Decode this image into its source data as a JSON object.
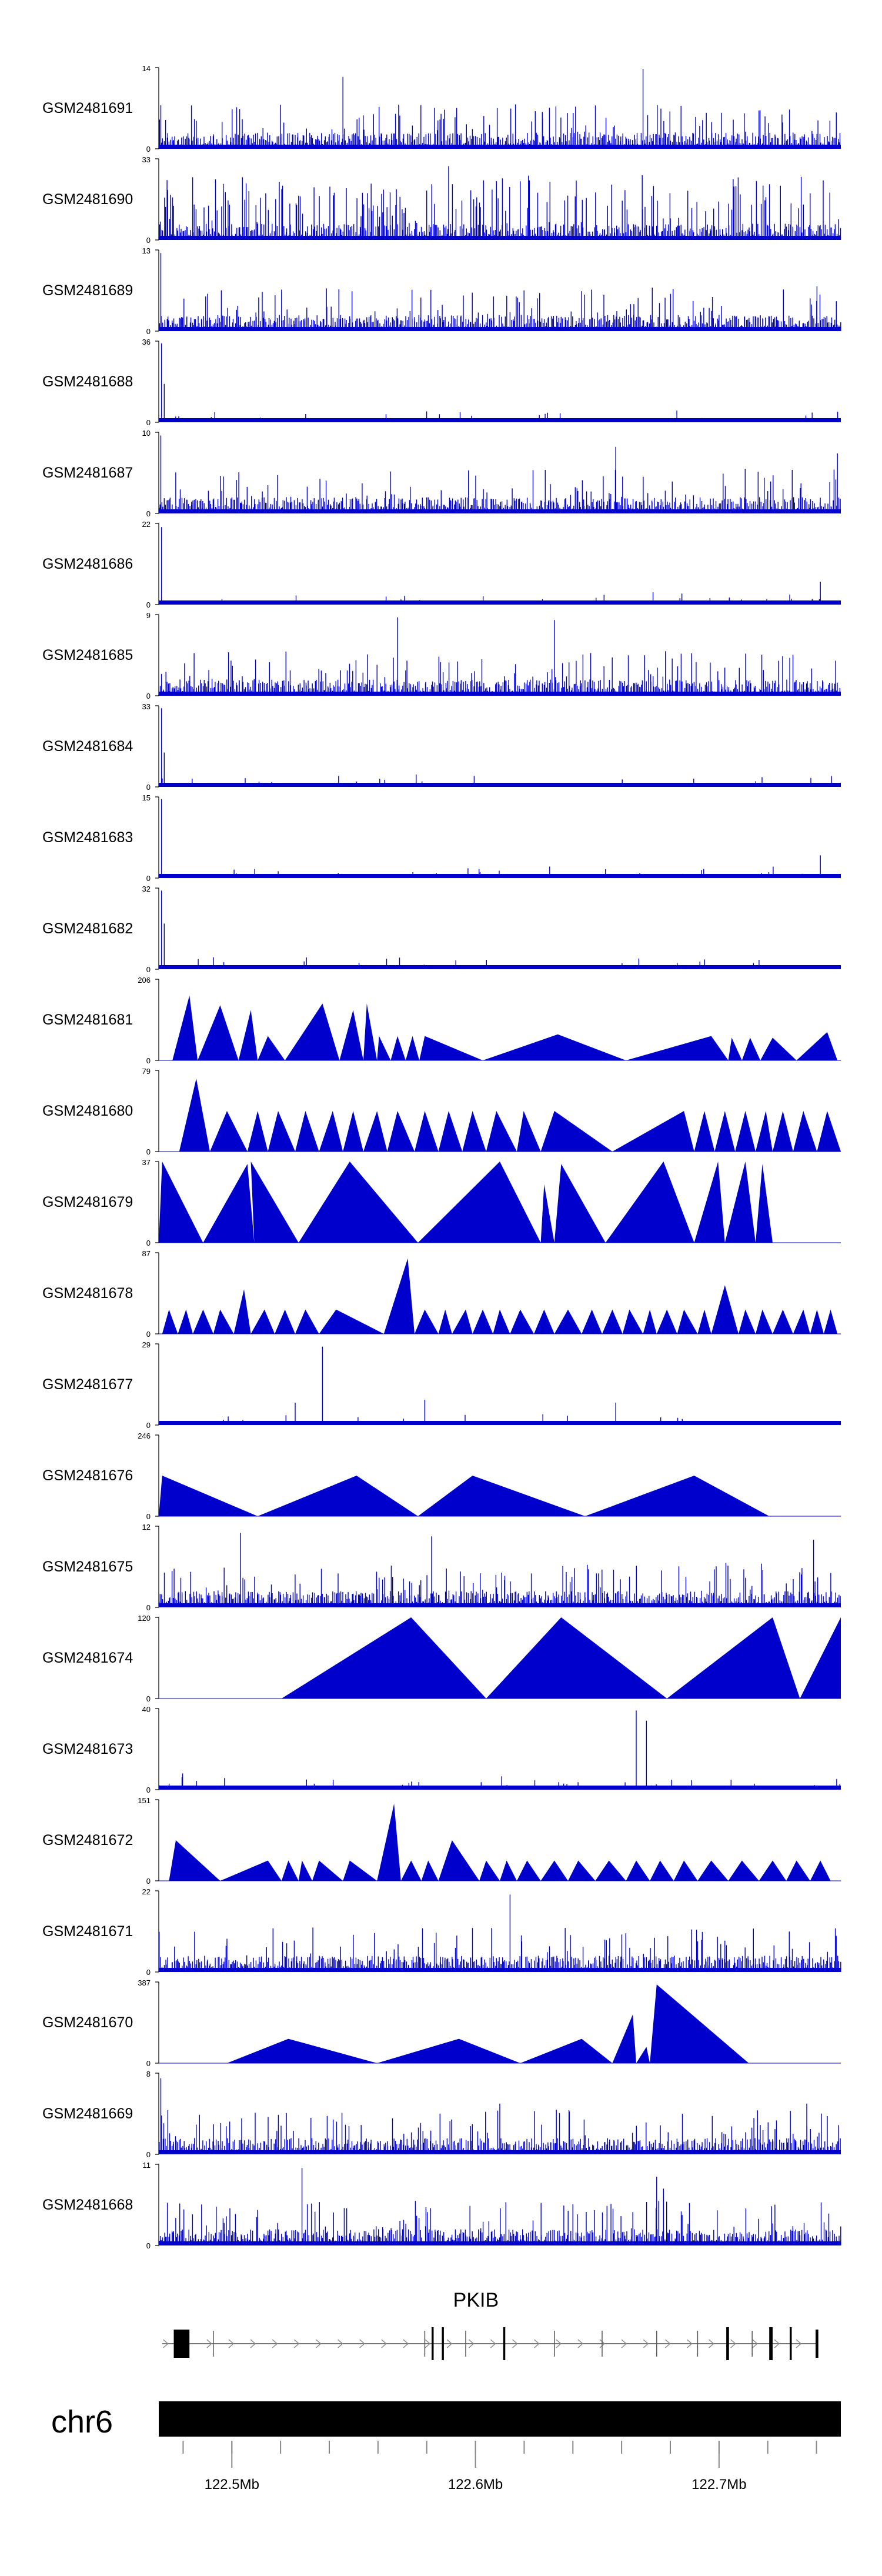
{
  "chart_data": {
    "type": "area",
    "title": "",
    "colors": {
      "signal": "#0000cc",
      "axis": "#000000",
      "gene": "#000000",
      "chromosome_bar": "#000000"
    },
    "tracks": [
      {
        "name": "GSM2481691",
        "ymax": "14",
        "ymin": "0",
        "style": "dense",
        "peaks": [
          [
            0.003,
            7.5
          ],
          [
            0.27,
            12.4
          ],
          [
            0.71,
            13.8
          ],
          [
            0.88,
            6.6
          ]
        ]
      },
      {
        "name": "GSM2481690",
        "ymax": "33",
        "ymin": "0",
        "style": "dense-spiky",
        "peaks": [
          [
            0.205,
            18
          ],
          [
            0.425,
            30
          ],
          [
            0.955,
            19
          ]
        ]
      },
      {
        "name": "GSM2481689",
        "ymax": "13",
        "ymin": "0",
        "style": "dense",
        "peaks": [
          [
            0.003,
            12.5
          ],
          [
            0.62,
            6.4
          ],
          [
            0.965,
            7.2
          ]
        ]
      },
      {
        "name": "GSM2481688",
        "ymax": "36",
        "ymin": "0",
        "style": "sparse",
        "peaks": [
          [
            0.004,
            35
          ],
          [
            0.008,
            17
          ]
        ]
      },
      {
        "name": "GSM2481687",
        "ymax": "10",
        "ymin": "0",
        "style": "dense",
        "peaks": [
          [
            0.003,
            9.6
          ],
          [
            0.67,
            8.2
          ],
          [
            0.995,
            7.4
          ]
        ]
      },
      {
        "name": "GSM2481686",
        "ymax": "22",
        "ymin": "0",
        "style": "sparse",
        "peaks": [
          [
            0.004,
            21
          ],
          [
            0.97,
            6.2
          ]
        ]
      },
      {
        "name": "GSM2481685",
        "ymax": "9",
        "ymin": "0",
        "style": "dense",
        "peaks": [
          [
            0.35,
            8.7
          ],
          [
            0.58,
            8.4
          ]
        ]
      },
      {
        "name": "GSM2481684",
        "ymax": "33",
        "ymin": "0",
        "style": "sparse",
        "peaks": [
          [
            0.004,
            32
          ],
          [
            0.008,
            14
          ]
        ]
      },
      {
        "name": "GSM2481683",
        "ymax": "15",
        "ymin": "0",
        "style": "sparse",
        "peaks": [
          [
            0.004,
            14.6
          ],
          [
            0.97,
            4.2
          ]
        ]
      },
      {
        "name": "GSM2481682",
        "ymax": "32",
        "ymin": "0",
        "style": "sparse",
        "peaks": [
          [
            0.004,
            31
          ],
          [
            0.008,
            18
          ]
        ]
      },
      {
        "name": "GSM2481681",
        "ymax": "206",
        "ymin": "0",
        "style": "triangles",
        "tri": [
          [
            0.02,
            0.045,
            0.057,
            0.8
          ],
          [
            0.057,
            0.09,
            0.117,
            0.68
          ],
          [
            0.117,
            0.135,
            0.145,
            0.62
          ],
          [
            0.145,
            0.16,
            0.185,
            0.3
          ],
          [
            0.185,
            0.24,
            0.265,
            0.7
          ],
          [
            0.265,
            0.285,
            0.3,
            0.62
          ],
          [
            0.3,
            0.305,
            0.32,
            0.7
          ],
          [
            0.32,
            0.323,
            0.34,
            0.3
          ],
          [
            0.34,
            0.35,
            0.362,
            0.3
          ],
          [
            0.362,
            0.372,
            0.382,
            0.3
          ],
          [
            0.382,
            0.39,
            0.475,
            0.3
          ],
          [
            0.475,
            0.585,
            0.685,
            0.32
          ],
          [
            0.685,
            0.81,
            0.835,
            0.3
          ],
          [
            0.835,
            0.84,
            0.855,
            0.28
          ],
          [
            0.855,
            0.867,
            0.882,
            0.28
          ],
          [
            0.882,
            0.9,
            0.935,
            0.28
          ],
          [
            0.935,
            0.98,
            0.995,
            0.35
          ]
        ]
      },
      {
        "name": "GSM2481680",
        "ymax": "79",
        "ymin": "0",
        "style": "triangles",
        "tri": [
          [
            0.03,
            0.055,
            0.075,
            0.9
          ],
          [
            0.075,
            0.1,
            0.13,
            0.5
          ],
          [
            0.13,
            0.145,
            0.16,
            0.5
          ],
          [
            0.16,
            0.175,
            0.2,
            0.5
          ],
          [
            0.2,
            0.215,
            0.235,
            0.5
          ],
          [
            0.235,
            0.255,
            0.27,
            0.5
          ],
          [
            0.27,
            0.285,
            0.3,
            0.5
          ],
          [
            0.3,
            0.32,
            0.335,
            0.5
          ],
          [
            0.335,
            0.35,
            0.375,
            0.5
          ],
          [
            0.375,
            0.39,
            0.41,
            0.5
          ],
          [
            0.41,
            0.425,
            0.445,
            0.5
          ],
          [
            0.445,
            0.46,
            0.48,
            0.5
          ],
          [
            0.48,
            0.495,
            0.525,
            0.5
          ],
          [
            0.525,
            0.535,
            0.56,
            0.5
          ],
          [
            0.56,
            0.58,
            0.665,
            0.5
          ],
          [
            0.665,
            0.77,
            0.785,
            0.5
          ],
          [
            0.785,
            0.8,
            0.815,
            0.5
          ],
          [
            0.815,
            0.83,
            0.845,
            0.5
          ],
          [
            0.845,
            0.86,
            0.875,
            0.5
          ],
          [
            0.875,
            0.89,
            0.9,
            0.5
          ],
          [
            0.9,
            0.915,
            0.93,
            0.5
          ],
          [
            0.93,
            0.945,
            0.965,
            0.5
          ],
          [
            0.965,
            0.98,
            1.0,
            0.5
          ]
        ]
      },
      {
        "name": "GSM2481679",
        "ymax": "37",
        "ymin": "0",
        "style": "triangles",
        "tri": [
          [
            0.0,
            0.005,
            0.065,
            1.0
          ],
          [
            0.065,
            0.13,
            0.14,
            0.97
          ],
          [
            0.14,
            0.135,
            0.205,
            1.0
          ],
          [
            0.205,
            0.28,
            0.38,
            1.0
          ],
          [
            0.38,
            0.5,
            0.56,
            1.0
          ],
          [
            0.56,
            0.565,
            0.58,
            0.72
          ],
          [
            0.58,
            0.59,
            0.655,
            0.97
          ],
          [
            0.655,
            0.74,
            0.785,
            1.0
          ],
          [
            0.785,
            0.82,
            0.83,
            1.0
          ],
          [
            0.83,
            0.86,
            0.875,
            1.0
          ],
          [
            0.875,
            0.885,
            0.9,
            0.97
          ]
        ]
      },
      {
        "name": "GSM2481678",
        "ymax": "87",
        "ymin": "0",
        "style": "triangles",
        "tri": [
          [
            0.005,
            0.015,
            0.028,
            0.3
          ],
          [
            0.028,
            0.04,
            0.05,
            0.3
          ],
          [
            0.05,
            0.065,
            0.08,
            0.3
          ],
          [
            0.08,
            0.09,
            0.11,
            0.3
          ],
          [
            0.11,
            0.125,
            0.135,
            0.55
          ],
          [
            0.135,
            0.155,
            0.17,
            0.3
          ],
          [
            0.17,
            0.185,
            0.2,
            0.3
          ],
          [
            0.2,
            0.215,
            0.235,
            0.3
          ],
          [
            0.235,
            0.26,
            0.33,
            0.3
          ],
          [
            0.33,
            0.365,
            0.375,
            0.93
          ],
          [
            0.375,
            0.39,
            0.41,
            0.3
          ],
          [
            0.41,
            0.42,
            0.43,
            0.3
          ],
          [
            0.43,
            0.45,
            0.46,
            0.3
          ],
          [
            0.46,
            0.475,
            0.49,
            0.3
          ],
          [
            0.49,
            0.5,
            0.515,
            0.3
          ],
          [
            0.515,
            0.53,
            0.55,
            0.3
          ],
          [
            0.55,
            0.565,
            0.58,
            0.3
          ],
          [
            0.58,
            0.6,
            0.62,
            0.3
          ],
          [
            0.62,
            0.635,
            0.65,
            0.3
          ],
          [
            0.65,
            0.665,
            0.68,
            0.3
          ],
          [
            0.68,
            0.69,
            0.71,
            0.3
          ],
          [
            0.71,
            0.72,
            0.73,
            0.3
          ],
          [
            0.73,
            0.745,
            0.76,
            0.3
          ],
          [
            0.76,
            0.77,
            0.79,
            0.3
          ],
          [
            0.79,
            0.8,
            0.81,
            0.3
          ],
          [
            0.81,
            0.83,
            0.85,
            0.6
          ],
          [
            0.85,
            0.86,
            0.875,
            0.3
          ],
          [
            0.875,
            0.885,
            0.9,
            0.3
          ],
          [
            0.9,
            0.915,
            0.93,
            0.3
          ],
          [
            0.93,
            0.945,
            0.955,
            0.3
          ],
          [
            0.955,
            0.965,
            0.975,
            0.3
          ],
          [
            0.975,
            0.985,
            0.995,
            0.3
          ]
        ]
      },
      {
        "name": "GSM2481677",
        "ymax": "29",
        "ymin": "0",
        "style": "sparse",
        "peaks": [
          [
            0.24,
            28
          ],
          [
            0.2,
            8
          ],
          [
            0.39,
            9
          ],
          [
            0.67,
            8
          ]
        ]
      },
      {
        "name": "GSM2481676",
        "ymax": "246",
        "ymin": "0",
        "style": "triangles",
        "tri": [
          [
            0.0,
            0.005,
            0.145,
            0.5
          ],
          [
            0.145,
            0.29,
            0.38,
            0.5
          ],
          [
            0.38,
            0.46,
            0.625,
            0.5
          ],
          [
            0.625,
            0.785,
            0.895,
            0.5
          ]
        ]
      },
      {
        "name": "GSM2481675",
        "ymax": "12",
        "ymin": "0",
        "style": "dense",
        "peaks": [
          [
            0.12,
            11
          ],
          [
            0.4,
            10.5
          ],
          [
            0.96,
            10
          ]
        ]
      },
      {
        "name": "GSM2481674",
        "ymax": "120",
        "ymin": "0",
        "style": "triangles",
        "tri": [
          [
            0.18,
            0.37,
            0.48,
            1.0
          ],
          [
            0.48,
            0.59,
            0.745,
            1.0
          ],
          [
            0.745,
            0.9,
            0.94,
            1.0
          ],
          [
            0.94,
            1.0,
            1.0,
            1.0
          ]
        ]
      },
      {
        "name": "GSM2481673",
        "ymax": "40",
        "ymin": "0",
        "style": "sparse",
        "peaks": [
          [
            0.7,
            39
          ],
          [
            0.715,
            34
          ],
          [
            0.035,
            8
          ]
        ]
      },
      {
        "name": "GSM2481672",
        "ymax": "151",
        "ymin": "0",
        "style": "triangles",
        "tri": [
          [
            0.015,
            0.025,
            0.09,
            0.5
          ],
          [
            0.09,
            0.16,
            0.18,
            0.25
          ],
          [
            0.18,
            0.19,
            0.205,
            0.25
          ],
          [
            0.205,
            0.21,
            0.225,
            0.25
          ],
          [
            0.225,
            0.235,
            0.27,
            0.25
          ],
          [
            0.27,
            0.28,
            0.32,
            0.25
          ],
          [
            0.32,
            0.345,
            0.355,
            0.95
          ],
          [
            0.355,
            0.37,
            0.385,
            0.25
          ],
          [
            0.385,
            0.395,
            0.41,
            0.25
          ],
          [
            0.41,
            0.43,
            0.47,
            0.5
          ],
          [
            0.47,
            0.48,
            0.5,
            0.25
          ],
          [
            0.5,
            0.51,
            0.525,
            0.25
          ],
          [
            0.525,
            0.54,
            0.56,
            0.25
          ],
          [
            0.56,
            0.58,
            0.6,
            0.25
          ],
          [
            0.6,
            0.615,
            0.64,
            0.25
          ],
          [
            0.64,
            0.66,
            0.685,
            0.25
          ],
          [
            0.685,
            0.7,
            0.72,
            0.25
          ],
          [
            0.72,
            0.735,
            0.755,
            0.25
          ],
          [
            0.755,
            0.77,
            0.79,
            0.25
          ],
          [
            0.79,
            0.81,
            0.835,
            0.25
          ],
          [
            0.835,
            0.855,
            0.88,
            0.25
          ],
          [
            0.88,
            0.9,
            0.92,
            0.25
          ],
          [
            0.92,
            0.935,
            0.955,
            0.25
          ],
          [
            0.955,
            0.97,
            0.985,
            0.25
          ]
        ]
      },
      {
        "name": "GSM2481671",
        "ymax": "22",
        "ymin": "0",
        "style": "dense",
        "peaks": [
          [
            0.515,
            21
          ],
          [
            0.1,
            9
          ],
          [
            0.83,
            8.5
          ]
        ]
      },
      {
        "name": "GSM2481670",
        "ymax": "387",
        "ymin": "0",
        "style": "triangles",
        "tri": [
          [
            0.1,
            0.19,
            0.32,
            0.3
          ],
          [
            0.32,
            0.44,
            0.53,
            0.3
          ],
          [
            0.53,
            0.62,
            0.665,
            0.3
          ],
          [
            0.665,
            0.695,
            0.7,
            0.6
          ],
          [
            0.7,
            0.715,
            0.72,
            0.2
          ],
          [
            0.72,
            0.73,
            0.865,
            0.97
          ]
        ]
      },
      {
        "name": "GSM2481669",
        "ymax": "8",
        "ymin": "0",
        "style": "dense",
        "peaks": [
          [
            0.003,
            7.5
          ],
          [
            0.5,
            5
          ],
          [
            0.95,
            5
          ]
        ]
      },
      {
        "name": "GSM2481668",
        "ymax": "11",
        "ymin": "0",
        "style": "dense",
        "peaks": [
          [
            0.21,
            10.5
          ],
          [
            0.73,
            9.3
          ],
          [
            0.74,
            7.7
          ]
        ]
      }
    ],
    "gene": {
      "name": "PKIB",
      "exons": [
        [
          0.022,
          0.045,
          "cds"
        ],
        [
          0.4,
          0.403,
          "thin"
        ],
        [
          0.415,
          0.418,
          "thin"
        ],
        [
          0.505,
          0.508,
          "thin"
        ],
        [
          0.832,
          0.836,
          "thin"
        ],
        [
          0.895,
          0.9,
          "thin"
        ],
        [
          0.925,
          0.928,
          "thin"
        ],
        [
          0.963,
          0.967,
          "cds"
        ]
      ],
      "tick_marks": [
        0.08,
        0.39,
        0.45,
        0.58,
        0.65,
        0.73,
        0.79,
        0.87
      ]
    },
    "axis": {
      "chromosome": "chr6",
      "x_domain_mb": [
        122.47,
        122.75
      ],
      "major_ticks": [
        {
          "pos_mb": 122.5,
          "label": "122.5Mb"
        },
        {
          "pos_mb": 122.6,
          "label": "122.6Mb"
        },
        {
          "pos_mb": 122.7,
          "label": "122.7Mb"
        }
      ],
      "minor_tick_step_mb": 0.02
    }
  }
}
